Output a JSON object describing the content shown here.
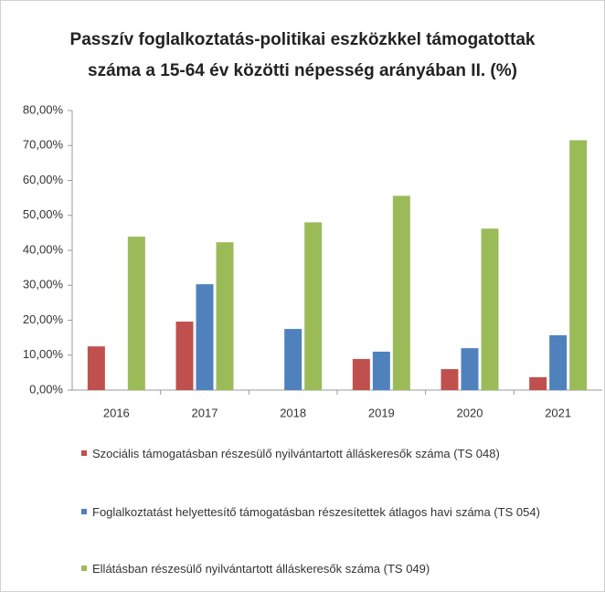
{
  "chart_data": {
    "type": "bar",
    "title": "Passzív foglalkoztatás-politikai eszközkkel támogatottak száma a 15-64 év közötti népesség  arányában II. (%)",
    "categories": [
      "2016",
      "2017",
      "2018",
      "2019",
      "2020",
      "2021"
    ],
    "series": [
      {
        "name": "Szociális támogatásban részesülő nyilvántartott álláskeresők száma (TS 048)",
        "color": "#c0504d",
        "values": [
          12.5,
          19.6,
          null,
          8.9,
          6.0,
          3.7
        ]
      },
      {
        "name": "Foglalkoztatást helyettesítő támogatásban részesítettek átlagos havi száma (TS 054)",
        "color": "#4f81bd",
        "values": [
          null,
          30.3,
          17.5,
          11.0,
          12.0,
          15.7
        ]
      },
      {
        "name": "Ellátásban részesülő nyilvántartott álláskeresők száma (TS 049)",
        "color": "#9bbb59",
        "values": [
          43.9,
          42.3,
          48.0,
          55.6,
          46.2,
          71.5
        ]
      }
    ],
    "ylim": [
      0,
      80
    ],
    "yticks": [
      {
        "value": 0,
        "label": "0,00%"
      },
      {
        "value": 10,
        "label": "10,00%"
      },
      {
        "value": 20,
        "label": "20,00%"
      },
      {
        "value": 30,
        "label": "30,00%"
      },
      {
        "value": 40,
        "label": "40,00%"
      },
      {
        "value": 50,
        "label": "50,00%"
      },
      {
        "value": 60,
        "label": "60,00%"
      },
      {
        "value": 70,
        "label": "70,00%"
      },
      {
        "value": 80,
        "label": "80,00%"
      }
    ],
    "grid": false
  }
}
